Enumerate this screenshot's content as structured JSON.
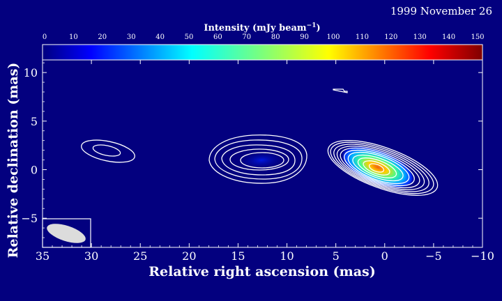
{
  "chart_data": {
    "type": "heatmap",
    "title": "1999 November 26",
    "xlabel": "Relative right ascension (mas)",
    "ylabel": "Relative declination (mas)",
    "xlim": [
      35,
      -10
    ],
    "ylim": [
      -8,
      11.3
    ],
    "xticks": [
      35,
      30,
      25,
      20,
      15,
      10,
      5,
      0,
      -5,
      -10
    ],
    "xtick_labels": [
      "35",
      "30",
      "25",
      "20",
      "15",
      "10",
      "5",
      "0",
      "−5",
      "−10"
    ],
    "yticks": [
      10,
      5,
      0,
      -5
    ],
    "ytick_labels": [
      "10",
      "5",
      "0",
      "−5"
    ],
    "colorbar": {
      "label_main": "Intensity (mJy beam",
      "label_exp": "−1",
      "label_close": ")",
      "range": [
        0,
        150
      ],
      "ticks": [
        "0",
        "10",
        "20",
        "30",
        "40",
        "50",
        "60",
        "70",
        "80",
        "90",
        "100",
        "110",
        "120",
        "130",
        "140",
        "150"
      ],
      "colormap": "jet"
    },
    "components": [
      {
        "x": 29,
        "y": 2.0,
        "contour_levels": 2,
        "peak_mJy": 2
      },
      {
        "x": 12.5,
        "y": 1.0,
        "contour_levels": 5,
        "peak_mJy": 4
      },
      {
        "x": 0.7,
        "y": 0.2,
        "contour_levels": 11,
        "peak_mJy": 120
      }
    ],
    "beam": {
      "x": 32,
      "y": -6.5,
      "major_mas": 4.2,
      "minor_mas": 1.7,
      "pa_deg": 70
    }
  }
}
